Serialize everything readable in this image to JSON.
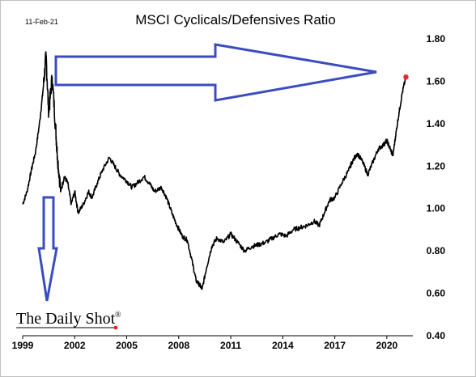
{
  "chart_data": {
    "type": "line",
    "title": "MSCI Cyclicals/Defensives Ratio",
    "date_label": "11-Feb-21",
    "source_label": "The Daily Shot",
    "source_mark": "®",
    "xlabel": "",
    "ylabel": "",
    "x_ticks": [
      "1999",
      "2002",
      "2005",
      "2008",
      "2011",
      "2014",
      "2017",
      "2020"
    ],
    "y_ticks": [
      "0.40",
      "0.60",
      "0.80",
      "1.00",
      "1.20",
      "1.40",
      "1.60",
      "1.80"
    ],
    "xlim": [
      1999.0,
      2021.5
    ],
    "ylim": [
      0.4,
      1.8
    ],
    "grid": false,
    "colors": {
      "line": "#000000",
      "last_point": "#e8281e",
      "arrow": "#3b4cc0"
    },
    "series": [
      {
        "x": [
          1999.0,
          1999.25,
          1999.5,
          1999.75,
          2000.0,
          2000.2,
          2000.35,
          2000.5,
          2000.7,
          2000.9,
          2001.0,
          2001.2,
          2001.4,
          2001.6,
          2001.8,
          2002.0,
          2002.2,
          2002.5,
          2002.8,
          2003.0,
          2003.3,
          2003.6,
          2004.0,
          2004.3,
          2004.6,
          2005.0,
          2005.3,
          2005.6,
          2006.0,
          2006.3,
          2006.6,
          2007.0,
          2007.3,
          2007.6,
          2007.9,
          2008.2,
          2008.5,
          2008.8,
          2009.0,
          2009.2,
          2009.35,
          2009.6,
          2009.9,
          2010.2,
          2010.6,
          2011.0,
          2011.4,
          2011.8,
          2012.2,
          2012.6,
          2013.0,
          2013.4,
          2013.8,
          2014.2,
          2014.6,
          2015.0,
          2015.4,
          2015.8,
          2016.1,
          2016.4,
          2016.7,
          2017.0,
          2017.4,
          2017.8,
          2018.0,
          2018.3,
          2018.6,
          2018.9,
          2019.2,
          2019.5,
          2019.8,
          2020.0,
          2020.2,
          2020.35,
          2020.5,
          2020.7,
          2020.9,
          2021.1
        ],
        "y": [
          1.02,
          1.08,
          1.18,
          1.27,
          1.42,
          1.58,
          1.72,
          1.45,
          1.62,
          1.38,
          1.25,
          1.08,
          1.15,
          1.12,
          1.02,
          1.08,
          0.98,
          1.02,
          1.08,
          1.05,
          1.12,
          1.18,
          1.24,
          1.2,
          1.16,
          1.13,
          1.1,
          1.12,
          1.15,
          1.12,
          1.08,
          1.1,
          1.05,
          0.98,
          0.92,
          0.87,
          0.85,
          0.74,
          0.66,
          0.64,
          0.62,
          0.72,
          0.82,
          0.86,
          0.84,
          0.88,
          0.84,
          0.8,
          0.82,
          0.83,
          0.84,
          0.86,
          0.88,
          0.87,
          0.9,
          0.91,
          0.92,
          0.94,
          0.92,
          0.98,
          1.04,
          1.05,
          1.12,
          1.18,
          1.22,
          1.26,
          1.22,
          1.16,
          1.22,
          1.28,
          1.3,
          1.32,
          1.28,
          1.25,
          1.34,
          1.45,
          1.55,
          1.62
        ]
      }
    ]
  }
}
